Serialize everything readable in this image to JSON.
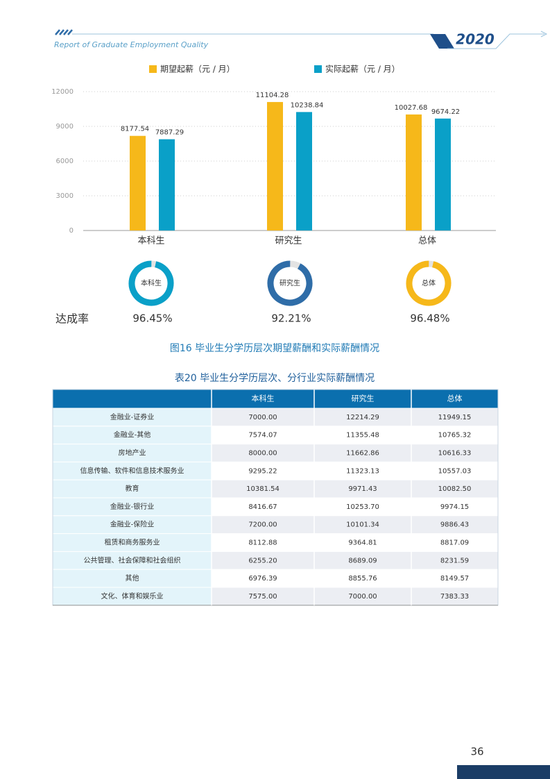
{
  "header": {
    "subtitle": "Report of Graduate Employment Quality",
    "year": "2020"
  },
  "chart_data": {
    "type": "bar",
    "categories": [
      "本科生",
      "研究生",
      "总体"
    ],
    "series": [
      {
        "name": "期望起薪（元 / 月）",
        "color": "#f6b81a",
        "values": [
          8177.54,
          11104.28,
          10027.68
        ]
      },
      {
        "name": "实际起薪（元 / 月）",
        "color": "#0aa0c8",
        "values": [
          7887.29,
          10238.84,
          9674.22
        ]
      }
    ],
    "ylim": [
      0,
      12000
    ],
    "yticks": [
      0,
      3000,
      6000,
      9000,
      12000
    ],
    "grid": true
  },
  "rates": {
    "label": "达成率",
    "items": [
      {
        "name": "本科生",
        "value": 96.45,
        "value_label": "96.45%",
        "color": "#0aa0c8"
      },
      {
        "name": "研究生",
        "value": 92.21,
        "value_label": "92.21%",
        "color": "#2f6da8"
      },
      {
        "name": "总体",
        "value": 96.48,
        "value_label": "96.48%",
        "color": "#f6b81a"
      }
    ]
  },
  "figure_caption": "图16 毕业生分学历层次期望薪酬和实际薪酬情况",
  "table": {
    "title": "表20 毕业生分学历层次、分行业实际薪酬情况",
    "columns": [
      "本科生",
      "研究生",
      "总体"
    ],
    "rows": [
      [
        "金融业-证券业",
        "7000.00",
        "12214.29",
        "11949.15"
      ],
      [
        "金融业-其他",
        "7574.07",
        "11355.48",
        "10765.32"
      ],
      [
        "房地产业",
        "8000.00",
        "11662.86",
        "10616.33"
      ],
      [
        "信息传输、软件和信息技术服务业",
        "9295.22",
        "11323.13",
        "10557.03"
      ],
      [
        "教育",
        "10381.54",
        "9971.43",
        "10082.50"
      ],
      [
        "金融业-银行业",
        "8416.67",
        "10253.70",
        "9974.15"
      ],
      [
        "金融业-保险业",
        "7200.00",
        "10101.34",
        "9886.43"
      ],
      [
        "租赁和商务服务业",
        "8112.88",
        "9364.81",
        "8817.09"
      ],
      [
        "公共管理、社会保障和社会组织",
        "6255.20",
        "8689.09",
        "8231.59"
      ],
      [
        "其他",
        "6976.39",
        "8855.76",
        "8149.57"
      ],
      [
        "文化、体育和娱乐业",
        "7575.00",
        "7000.00",
        "7383.33"
      ]
    ]
  },
  "page_number": "36"
}
